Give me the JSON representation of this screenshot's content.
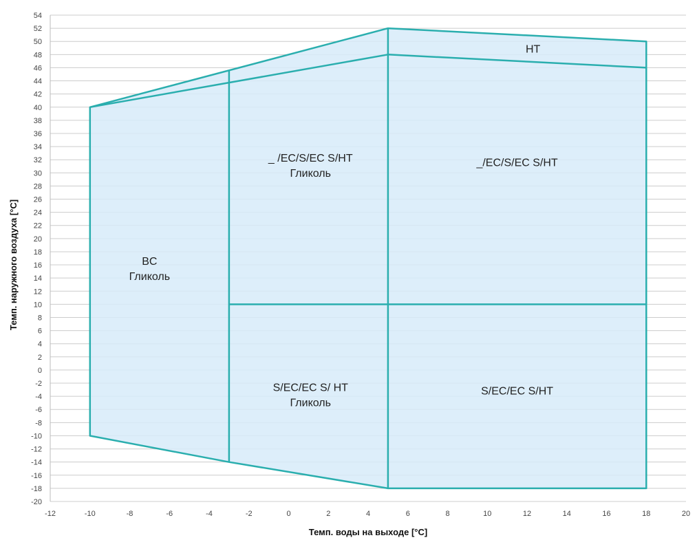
{
  "chart_data": {
    "type": "area",
    "title": "",
    "xlabel": "Темп. воды на выходе [°C]",
    "ylabel": "Темп. наружного воздуха [°C]",
    "xlim": [
      -12,
      20
    ],
    "ylim": [
      -20,
      54
    ],
    "x_ticks": [
      "-12",
      "-10",
      "-8",
      "-6",
      "-4",
      "-2",
      "0",
      "2",
      "4",
      "6",
      "8",
      "10",
      "12",
      "14",
      "16",
      "18",
      "20"
    ],
    "y_ticks": [
      "-20",
      "-18",
      "-16",
      "-14",
      "-12",
      "-10",
      "-8",
      "-6",
      "-4",
      "-2",
      "0",
      "2",
      "4",
      "6",
      "8",
      "10",
      "12",
      "14",
      "16",
      "18",
      "20",
      "22",
      "24",
      "26",
      "28",
      "30",
      "32",
      "34",
      "36",
      "38",
      "40",
      "42",
      "44",
      "46",
      "48",
      "50",
      "52",
      "54"
    ],
    "grid": true,
    "envelope": [
      {
        "x": -10,
        "y": 40
      },
      {
        "x": 5,
        "y": 52
      },
      {
        "x": 18,
        "y": 50
      },
      {
        "x": 18,
        "y": -18
      },
      {
        "x": 5,
        "y": -18
      },
      {
        "x": -3,
        "y": -14
      },
      {
        "x": -10,
        "y": -10
      }
    ],
    "boundary_lines": [
      {
        "name": "standard-upper",
        "points": [
          {
            "x": -10,
            "y": 40
          },
          {
            "x": 5,
            "y": 48
          },
          {
            "x": 18,
            "y": 46
          }
        ]
      },
      {
        "name": "glycol-divider",
        "points": [
          {
            "x": -3,
            "y": 45.6
          },
          {
            "x": -3,
            "y": -14
          }
        ]
      },
      {
        "name": "mid-divider",
        "points": [
          {
            "x": 5,
            "y": 52
          },
          {
            "x": 5,
            "y": -18
          }
        ]
      },
      {
        "name": "ambient-10",
        "points": [
          {
            "x": -3,
            "y": 10
          },
          {
            "x": 18,
            "y": 10
          }
        ]
      }
    ],
    "regions": [
      {
        "label_lines": [
          "HT"
        ],
        "x": 12.3,
        "y": 48.3
      },
      {
        "label_lines": [
          "_ /EC/S/EC S/HT",
          "Гликоль"
        ],
        "x": 1.1,
        "y": 31.7
      },
      {
        "label_lines": [
          "_/EC/S/EC S/HT"
        ],
        "x": 11.5,
        "y": 31.0
      },
      {
        "label_lines": [
          "BC",
          "Гликоль"
        ],
        "x": -7.0,
        "y": 16.0
      },
      {
        "label_lines": [
          "S/EC/EC S/ HT",
          "Гликоль"
        ],
        "x": 1.1,
        "y": -3.2
      },
      {
        "label_lines": [
          "S/EC/EC S/HT"
        ],
        "x": 11.5,
        "y": -3.7
      }
    ],
    "colors": {
      "line": "#2aaeae",
      "fill": "#d7ebf9",
      "grid": "#cccccc"
    }
  }
}
